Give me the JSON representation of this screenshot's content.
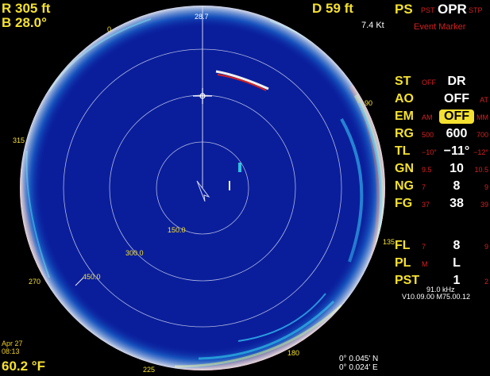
{
  "top_left": {
    "range": "R 305 ft",
    "bearing": "B 28.0°"
  },
  "top_center": {
    "depth": "D 59 ft",
    "speed": "7.4 Kt"
  },
  "ps_bar": {
    "label": "PS",
    "left": "PST",
    "value": "OPR",
    "right": "STP",
    "event_marker": "Event Marker"
  },
  "controls": [
    {
      "label": "ST",
      "left": "OFF",
      "value": "DR",
      "right": ""
    },
    {
      "label": "AO",
      "left": "",
      "value": "OFF",
      "right": "AT"
    },
    {
      "label": "EM",
      "left": "AM",
      "value": "OFF",
      "right": "MM",
      "highlight": true
    },
    {
      "label": "RG",
      "left": "500",
      "value": "600",
      "right": "700"
    },
    {
      "label": "TL",
      "left": "−10°",
      "value": "−11°",
      "right": "−12°"
    },
    {
      "label": "GN",
      "left": "9.5",
      "value": "10",
      "right": "10.5"
    },
    {
      "label": "NG",
      "left": "7",
      "value": "8",
      "right": "9"
    },
    {
      "label": "FG",
      "left": "37",
      "value": "38",
      "right": "39"
    }
  ],
  "controls2": [
    {
      "label": "FL",
      "left": "7",
      "value": "8",
      "right": "9"
    },
    {
      "label": "PL",
      "left": "M",
      "value": "L",
      "right": ""
    },
    {
      "label": "PST",
      "left": "",
      "value": "1",
      "right": "2"
    }
  ],
  "freq": "91.0  kHz",
  "version": "V10.09.00  M75.00.12",
  "datetime": {
    "date": "Apr 27",
    "time": "08:13"
  },
  "temperature": "60.2 °F",
  "position": {
    "lat": "0° 0.045' N",
    "lon": "0° 0.024' E"
  },
  "rings": [
    "150.0",
    "300.0",
    "450.0"
  ],
  "bearings": [
    "0",
    "28.7",
    "45",
    "90",
    "135",
    "180",
    "225",
    "270",
    "315"
  ],
  "colors": {
    "water": "#0a1e9c",
    "accent": "#f4e030",
    "alert": "#d42020"
  }
}
